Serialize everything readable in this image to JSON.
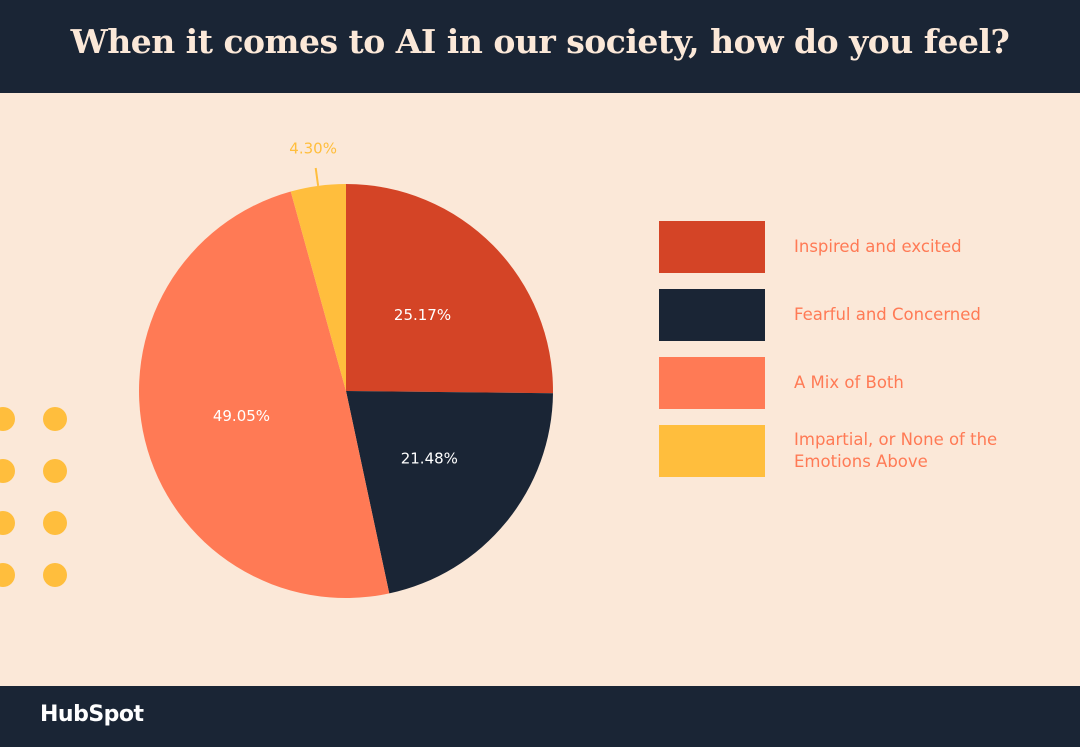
{
  "chart_data": {
    "type": "pie",
    "title": "When it comes to AI in our society, how do you feel?",
    "categories": [
      "Inspired and excited",
      "Fearful and Concerned",
      "A Mix of Both",
      "Impartial, or None of the Emotions Above"
    ],
    "values": [
      25.17,
      21.48,
      49.05,
      4.3
    ],
    "value_labels": [
      "25.17%",
      "21.48%",
      "49.05%",
      "4.30%"
    ],
    "colors": [
      "#d44426",
      "#1a2535",
      "#ff7a55",
      "#ffbe3d"
    ],
    "legend": "right"
  },
  "footer": {
    "brand": "HubSpot"
  }
}
